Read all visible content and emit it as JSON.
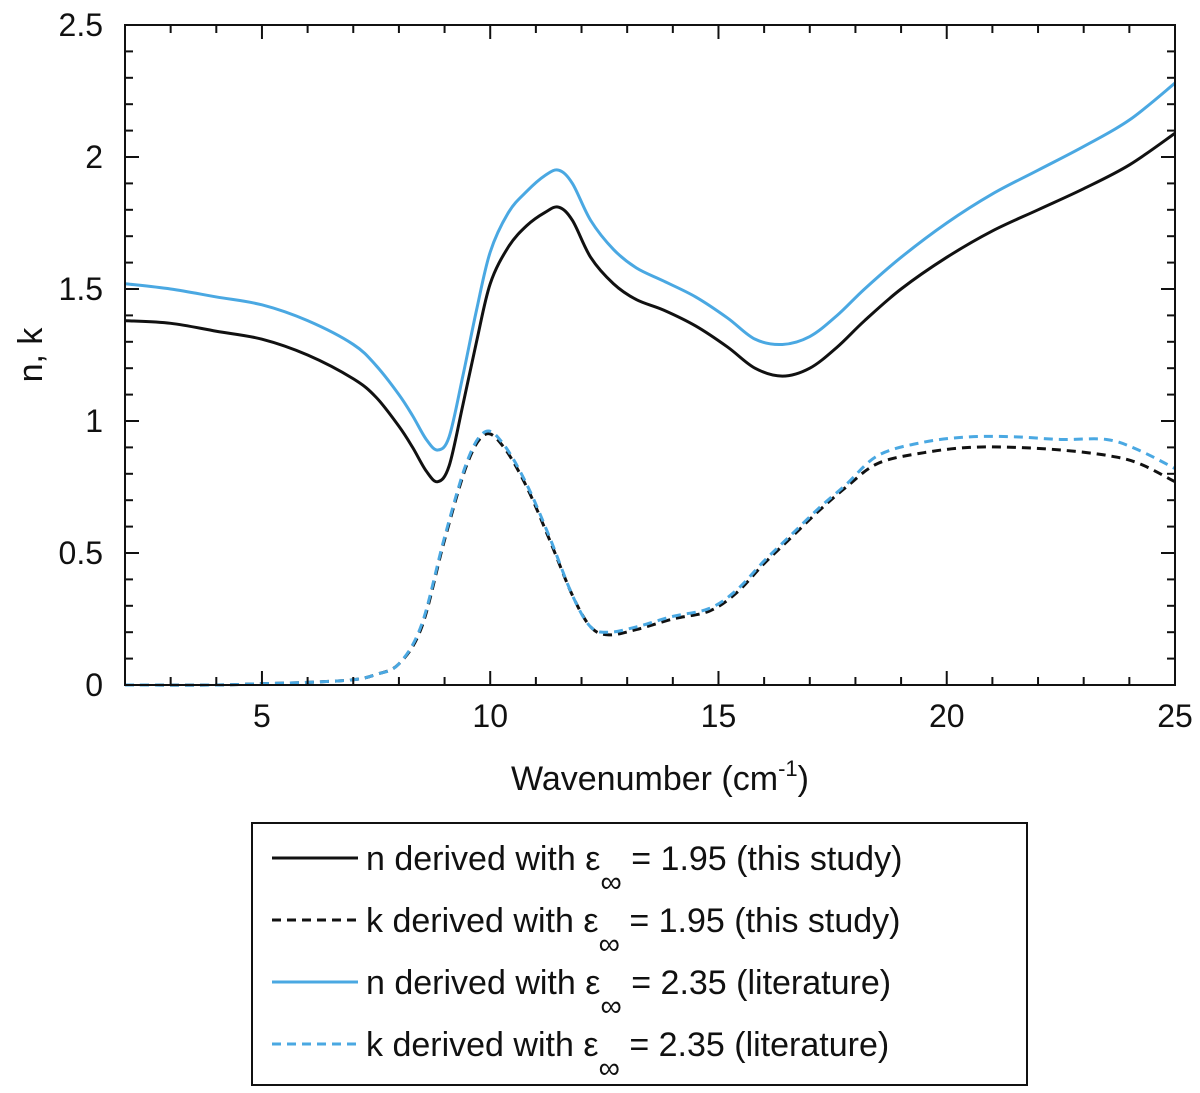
{
  "chart_data": {
    "type": "line",
    "xlabel": "Wavenumber (cm",
    "xlabel_sup": "-1",
    "xlabel_suffix": ")",
    "ylabel": "n, k",
    "xlim": [
      2,
      25
    ],
    "ylim": [
      0,
      2.5
    ],
    "xticks": [
      5,
      10,
      15,
      20,
      25
    ],
    "xtick_labels": [
      "5",
      "10",
      "15",
      "20",
      "25"
    ],
    "yticks": [
      0,
      0.5,
      1,
      1.5,
      2,
      2.5
    ],
    "ytick_labels": [
      "0",
      "0.5",
      "1",
      "1.5",
      "2",
      "2.5"
    ],
    "x_minor_step": 1,
    "y_minor_step": 0.1,
    "grid": false,
    "legend_position": "below",
    "series": [
      {
        "name": "n derived with ε∞ = 1.95 (this study)",
        "legend_prefix": "n derived with ε",
        "legend_sub": "∞",
        "legend_suffix": " = 1.95 (this study)",
        "color": "#111111",
        "dash": "solid",
        "x": [
          2,
          3,
          4,
          5,
          6,
          7,
          7.5,
          8,
          8.3,
          8.6,
          8.85,
          9.1,
          9.4,
          9.7,
          10,
          10.4,
          10.8,
          11.2,
          11.5,
          11.8,
          12.2,
          12.7,
          13.2,
          13.8,
          14.5,
          15.2,
          15.8,
          16.4,
          17,
          17.6,
          18.2,
          19,
          20,
          21,
          22,
          23,
          24,
          25
        ],
        "y": [
          1.38,
          1.37,
          1.34,
          1.31,
          1.25,
          1.16,
          1.09,
          0.98,
          0.9,
          0.81,
          0.77,
          0.83,
          1.06,
          1.3,
          1.52,
          1.66,
          1.74,
          1.79,
          1.81,
          1.76,
          1.62,
          1.52,
          1.46,
          1.42,
          1.36,
          1.28,
          1.2,
          1.17,
          1.2,
          1.28,
          1.38,
          1.5,
          1.62,
          1.72,
          1.8,
          1.88,
          1.97,
          2.09
        ]
      },
      {
        "name": "k derived with ε∞ = 1.95 (this study)",
        "legend_prefix": "k derived with ε",
        "legend_sub": "∞",
        "legend_suffix": " = 1.95 (this study)",
        "color": "#111111",
        "dash": "dashed",
        "x": [
          2,
          4,
          5,
          6,
          7,
          7.5,
          8,
          8.5,
          9,
          9.5,
          9.9,
          10.3,
          10.8,
          11.3,
          11.8,
          12.2,
          12.6,
          13.2,
          14,
          14.8,
          15.4,
          16,
          16.6,
          17.2,
          17.8,
          18.5,
          19.5,
          20.5,
          21.5,
          22.5,
          23.5,
          24.2,
          25
        ],
        "y": [
          0,
          0,
          0.005,
          0.01,
          0.02,
          0.04,
          0.08,
          0.22,
          0.55,
          0.84,
          0.95,
          0.9,
          0.75,
          0.55,
          0.34,
          0.22,
          0.19,
          0.21,
          0.25,
          0.28,
          0.35,
          0.46,
          0.56,
          0.66,
          0.75,
          0.84,
          0.88,
          0.9,
          0.9,
          0.89,
          0.87,
          0.84,
          0.77
        ]
      },
      {
        "name": "n derived with ε∞ = 2.35 (literature)",
        "legend_prefix": "n derived with ε",
        "legend_sub": "∞",
        "legend_suffix": " = 2.35 (literature)",
        "color": "#4aa8e2",
        "dash": "solid",
        "x": [
          2,
          3,
          4,
          5,
          6,
          7,
          7.5,
          8,
          8.3,
          8.6,
          8.85,
          9.1,
          9.4,
          9.7,
          10,
          10.4,
          10.8,
          11.2,
          11.5,
          11.8,
          12.2,
          12.7,
          13.2,
          13.8,
          14.5,
          15.2,
          15.8,
          16.4,
          17,
          17.6,
          18.2,
          19,
          20,
          21,
          22,
          23,
          24,
          25
        ],
        "y": [
          1.52,
          1.5,
          1.47,
          1.44,
          1.38,
          1.29,
          1.21,
          1.1,
          1.02,
          0.93,
          0.89,
          0.94,
          1.17,
          1.42,
          1.64,
          1.79,
          1.87,
          1.93,
          1.95,
          1.9,
          1.76,
          1.65,
          1.58,
          1.53,
          1.47,
          1.39,
          1.31,
          1.29,
          1.32,
          1.4,
          1.5,
          1.62,
          1.75,
          1.86,
          1.95,
          2.04,
          2.14,
          2.28
        ]
      },
      {
        "name": "k derived with ε∞ = 2.35 (literature)",
        "legend_prefix": "k derived with ε",
        "legend_sub": "∞",
        "legend_suffix": " = 2.35 (literature)",
        "color": "#4aa8e2",
        "dash": "dashed",
        "x": [
          2,
          4,
          5,
          6,
          7,
          7.5,
          8,
          8.5,
          9,
          9.5,
          9.9,
          10.3,
          10.8,
          11.3,
          11.8,
          12.2,
          12.6,
          13.2,
          14,
          14.8,
          15.4,
          16,
          16.6,
          17.2,
          17.8,
          18.5,
          19.5,
          20.5,
          21.5,
          22.5,
          23.5,
          24.2,
          25
        ],
        "y": [
          0,
          0,
          0.005,
          0.01,
          0.02,
          0.04,
          0.08,
          0.23,
          0.56,
          0.85,
          0.96,
          0.91,
          0.76,
          0.56,
          0.34,
          0.22,
          0.2,
          0.22,
          0.26,
          0.29,
          0.36,
          0.47,
          0.57,
          0.67,
          0.76,
          0.87,
          0.92,
          0.94,
          0.94,
          0.93,
          0.93,
          0.89,
          0.82
        ]
      }
    ]
  }
}
